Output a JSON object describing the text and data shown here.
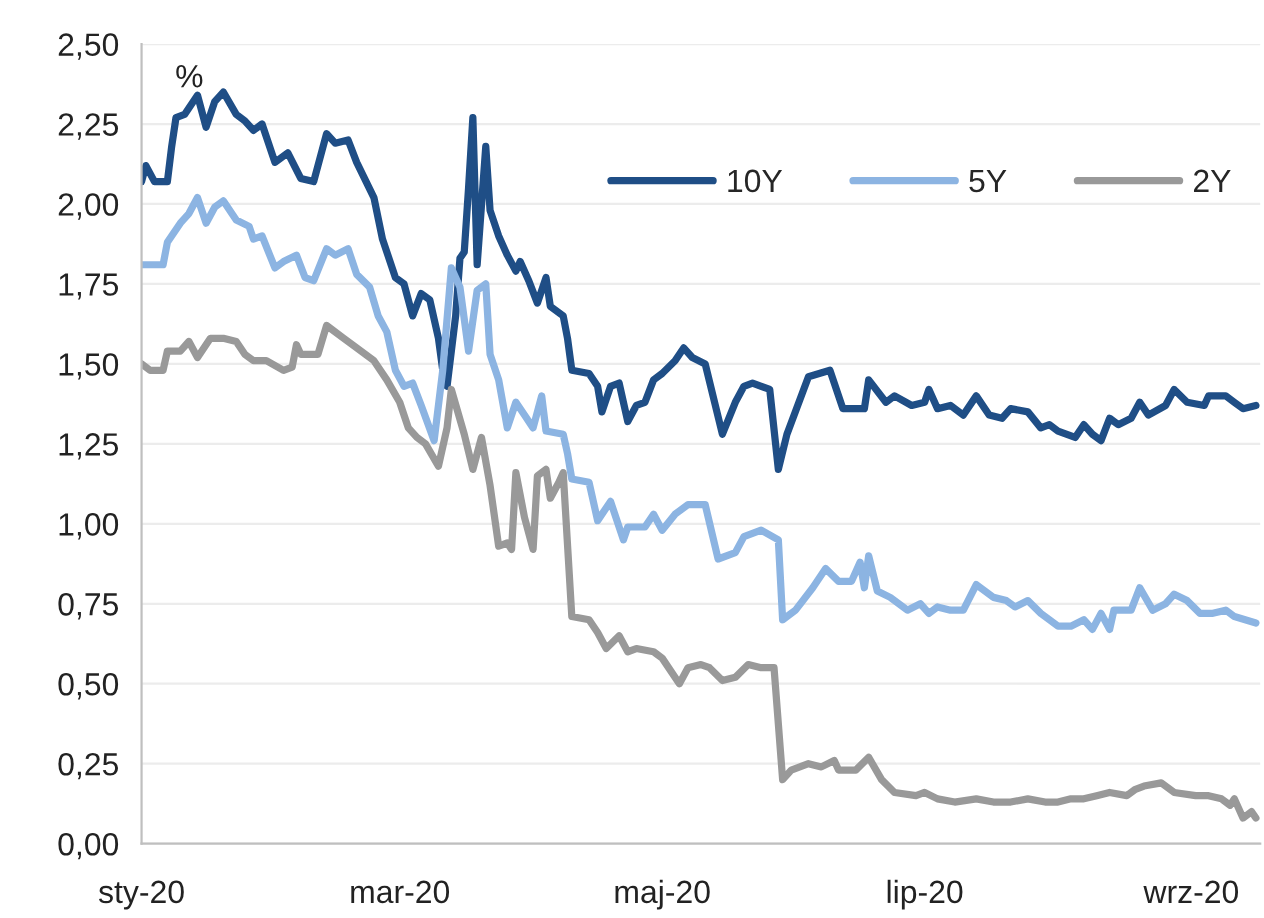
{
  "chart_data": {
    "type": "line",
    "ylabel": "%",
    "xlim": [
      "2020-01-01",
      "2020-09-17"
    ],
    "xticks": [
      {
        "value": "2020-01-01",
        "label": "sty-20"
      },
      {
        "value": "2020-03-01",
        "label": "mar-20"
      },
      {
        "value": "2020-05-01",
        "label": "maj-20"
      },
      {
        "value": "2020-07-01",
        "label": "lip-20"
      },
      {
        "value": "2020-09-01",
        "label": "wrz-20"
      }
    ],
    "ylim": [
      0,
      2.5
    ],
    "yticks": [
      {
        "value": 0,
        "label": "0,00"
      },
      {
        "value": 0.25,
        "label": "0,25"
      },
      {
        "value": 0.5,
        "label": "0,50"
      },
      {
        "value": 0.75,
        "label": "0,75"
      },
      {
        "value": 1,
        "label": "1,00"
      },
      {
        "value": 1.25,
        "label": "1,25"
      },
      {
        "value": 1.5,
        "label": "1,50"
      },
      {
        "value": 1.75,
        "label": "1,75"
      },
      {
        "value": 2,
        "label": "2,00"
      },
      {
        "value": 2.25,
        "label": "2,25"
      },
      {
        "value": 2.5,
        "label": "2,50"
      }
    ],
    "grid": "y",
    "legend": "top right",
    "marker": "none",
    "line_style": "solid",
    "series": [
      {
        "name": "10Y",
        "color": "#1f4e86",
        "x": [
          "2020-01-01",
          "2020-01-02",
          "2020-01-04",
          "2020-01-07",
          "2020-01-08",
          "2020-01-09",
          "2020-01-11",
          "2020-01-14",
          "2020-01-16",
          "2020-01-18",
          "2020-01-20",
          "2020-01-23",
          "2020-01-25",
          "2020-01-27",
          "2020-01-29",
          "2020-02-01",
          "2020-02-04",
          "2020-02-07",
          "2020-02-10",
          "2020-02-13",
          "2020-02-15",
          "2020-02-18",
          "2020-02-20",
          "2020-02-24",
          "2020-02-26",
          "2020-02-29",
          "2020-03-02",
          "2020-03-04",
          "2020-03-06",
          "2020-03-08",
          "2020-03-10",
          "2020-03-11",
          "2020-03-12",
          "2020-03-14",
          "2020-03-15",
          "2020-03-16",
          "2020-03-17",
          "2020-03-18",
          "2020-03-19",
          "2020-03-21",
          "2020-03-22",
          "2020-03-24",
          "2020-03-26",
          "2020-03-28",
          "2020-03-29",
          "2020-03-31",
          "2020-04-02",
          "2020-04-04",
          "2020-04-05",
          "2020-04-08",
          "2020-04-09",
          "2020-04-10",
          "2020-04-14",
          "2020-04-16",
          "2020-04-17",
          "2020-04-19",
          "2020-04-21",
          "2020-04-23",
          "2020-04-25",
          "2020-04-27",
          "2020-04-29",
          "2020-05-01",
          "2020-05-04",
          "2020-05-06",
          "2020-05-08",
          "2020-05-11",
          "2020-05-15",
          "2020-05-18",
          "2020-05-20",
          "2020-05-22",
          "2020-05-26",
          "2020-05-28",
          "2020-05-30",
          "2020-06-04",
          "2020-06-09",
          "2020-06-12",
          "2020-06-17",
          "2020-06-18",
          "2020-06-22",
          "2020-06-24",
          "2020-06-28",
          "2020-07-01",
          "2020-07-02",
          "2020-07-04",
          "2020-07-07",
          "2020-07-10",
          "2020-07-13",
          "2020-07-16",
          "2020-07-19",
          "2020-07-21",
          "2020-07-25",
          "2020-07-28",
          "2020-07-30",
          "2020-08-01",
          "2020-08-05",
          "2020-08-07",
          "2020-08-09",
          "2020-08-11",
          "2020-08-13",
          "2020-08-15",
          "2020-08-18",
          "2020-08-20",
          "2020-08-22",
          "2020-08-26",
          "2020-08-28",
          "2020-08-31",
          "2020-09-04",
          "2020-09-05",
          "2020-09-09",
          "2020-09-11",
          "2020-09-13",
          "2020-09-16"
        ],
        "values": [
          2.07,
          2.12,
          2.07,
          2.07,
          2.18,
          2.27,
          2.28,
          2.34,
          2.24,
          2.32,
          2.35,
          2.28,
          2.26,
          2.23,
          2.25,
          2.13,
          2.16,
          2.08,
          2.07,
          2.22,
          2.19,
          2.2,
          2.13,
          2.02,
          1.89,
          1.77,
          1.75,
          1.65,
          1.72,
          1.7,
          1.58,
          1.48,
          1.43,
          1.65,
          1.83,
          1.85,
          2.05,
          2.27,
          1.81,
          2.18,
          1.98,
          1.9,
          1.84,
          1.79,
          1.82,
          1.76,
          1.69,
          1.77,
          1.68,
          1.65,
          1.58,
          1.48,
          1.47,
          1.43,
          1.35,
          1.43,
          1.44,
          1.32,
          1.37,
          1.38,
          1.45,
          1.47,
          1.51,
          1.55,
          1.52,
          1.5,
          1.28,
          1.38,
          1.43,
          1.44,
          1.42,
          1.17,
          1.28,
          1.46,
          1.48,
          1.36,
          1.36,
          1.45,
          1.38,
          1.4,
          1.37,
          1.38,
          1.42,
          1.36,
          1.37,
          1.34,
          1.4,
          1.34,
          1.33,
          1.36,
          1.35,
          1.3,
          1.31,
          1.29,
          1.27,
          1.31,
          1.28,
          1.26,
          1.33,
          1.31,
          1.33,
          1.38,
          1.34,
          1.37,
          1.42,
          1.38,
          1.37,
          1.4,
          1.4,
          1.38,
          1.36,
          1.37
        ]
      },
      {
        "name": "5Y",
        "color": "#8cb4e2",
        "x": [
          "2020-01-01",
          "2020-01-03",
          "2020-01-06",
          "2020-01-07",
          "2020-01-10",
          "2020-01-12",
          "2020-01-14",
          "2020-01-16",
          "2020-01-18",
          "2020-01-20",
          "2020-01-23",
          "2020-01-26",
          "2020-01-27",
          "2020-01-29",
          "2020-02-01",
          "2020-02-03",
          "2020-02-06",
          "2020-02-08",
          "2020-02-10",
          "2020-02-13",
          "2020-02-15",
          "2020-02-18",
          "2020-02-20",
          "2020-02-23",
          "2020-02-25",
          "2020-02-27",
          "2020-02-29",
          "2020-03-02",
          "2020-03-04",
          "2020-03-06",
          "2020-03-09",
          "2020-03-11",
          "2020-03-13",
          "2020-03-15",
          "2020-03-17",
          "2020-03-19",
          "2020-03-21",
          "2020-03-22",
          "2020-03-24",
          "2020-03-26",
          "2020-03-28",
          "2020-03-30",
          "2020-04-01",
          "2020-04-03",
          "2020-04-04",
          "2020-04-08",
          "2020-04-09",
          "2020-04-10",
          "2020-04-14",
          "2020-04-16",
          "2020-04-19",
          "2020-04-22",
          "2020-04-23",
          "2020-04-27",
          "2020-04-29",
          "2020-05-01",
          "2020-05-04",
          "2020-05-07",
          "2020-05-11",
          "2020-05-14",
          "2020-05-18",
          "2020-05-20",
          "2020-05-24",
          "2020-05-28",
          "2020-05-29",
          "2020-06-01",
          "2020-06-05",
          "2020-06-08",
          "2020-06-11",
          "2020-06-14",
          "2020-06-16",
          "2020-06-17",
          "2020-06-18",
          "2020-06-20",
          "2020-06-23",
          "2020-06-27",
          "2020-06-30",
          "2020-07-02",
          "2020-07-04",
          "2020-07-07",
          "2020-07-10",
          "2020-07-13",
          "2020-07-17",
          "2020-07-20",
          "2020-07-22",
          "2020-07-25",
          "2020-07-28",
          "2020-08-01",
          "2020-08-04",
          "2020-08-07",
          "2020-08-09",
          "2020-08-11",
          "2020-08-13",
          "2020-08-14",
          "2020-08-18",
          "2020-08-20",
          "2020-08-23",
          "2020-08-26",
          "2020-08-28",
          "2020-08-31",
          "2020-09-03",
          "2020-09-06",
          "2020-09-09",
          "2020-09-11",
          "2020-09-16"
        ],
        "values": [
          1.81,
          1.81,
          1.81,
          1.88,
          1.94,
          1.97,
          2.02,
          1.94,
          1.99,
          2.01,
          1.95,
          1.93,
          1.89,
          1.9,
          1.8,
          1.82,
          1.84,
          1.77,
          1.76,
          1.86,
          1.84,
          1.86,
          1.78,
          1.74,
          1.65,
          1.6,
          1.48,
          1.43,
          1.44,
          1.37,
          1.26,
          1.48,
          1.8,
          1.74,
          1.54,
          1.73,
          1.75,
          1.53,
          1.45,
          1.3,
          1.38,
          1.34,
          1.3,
          1.4,
          1.29,
          1.28,
          1.22,
          1.14,
          1.13,
          1.01,
          1.07,
          0.95,
          0.99,
          0.99,
          1.03,
          0.98,
          1.03,
          1.06,
          1.06,
          0.89,
          0.91,
          0.96,
          0.98,
          0.95,
          0.7,
          0.73,
          0.8,
          0.86,
          0.82,
          0.82,
          0.88,
          0.8,
          0.9,
          0.79,
          0.77,
          0.73,
          0.75,
          0.72,
          0.74,
          0.73,
          0.73,
          0.81,
          0.77,
          0.76,
          0.74,
          0.76,
          0.72,
          0.68,
          0.68,
          0.7,
          0.67,
          0.72,
          0.67,
          0.73,
          0.73,
          0.8,
          0.73,
          0.75,
          0.78,
          0.76,
          0.72,
          0.72,
          0.73,
          0.71,
          0.69
        ]
      },
      {
        "name": "2Y",
        "color": "#999999",
        "x": [
          "2020-01-01",
          "2020-01-03",
          "2020-01-06",
          "2020-01-07",
          "2020-01-10",
          "2020-01-12",
          "2020-01-14",
          "2020-01-17",
          "2020-01-20",
          "2020-01-23",
          "2020-01-25",
          "2020-01-27",
          "2020-01-30",
          "2020-02-03",
          "2020-02-05",
          "2020-02-06",
          "2020-02-07",
          "2020-02-11",
          "2020-02-13",
          "2020-02-17",
          "2020-02-20",
          "2020-02-24",
          "2020-02-27",
          "2020-03-01",
          "2020-03-03",
          "2020-03-05",
          "2020-03-07",
          "2020-03-10",
          "2020-03-12",
          "2020-03-13",
          "2020-03-16",
          "2020-03-18",
          "2020-03-20",
          "2020-03-22",
          "2020-03-24",
          "2020-03-26",
          "2020-03-27",
          "2020-03-28",
          "2020-03-30",
          "2020-04-01",
          "2020-04-02",
          "2020-04-04",
          "2020-04-05",
          "2020-04-07",
          "2020-04-08",
          "2020-04-10",
          "2020-04-14",
          "2020-04-16",
          "2020-04-18",
          "2020-04-21",
          "2020-04-23",
          "2020-04-25",
          "2020-04-29",
          "2020-05-01",
          "2020-05-05",
          "2020-05-07",
          "2020-05-10",
          "2020-05-12",
          "2020-05-15",
          "2020-05-18",
          "2020-05-21",
          "2020-05-24",
          "2020-05-27",
          "2020-05-29",
          "2020-05-31",
          "2020-06-04",
          "2020-06-07",
          "2020-06-10",
          "2020-06-11",
          "2020-06-15",
          "2020-06-18",
          "2020-06-21",
          "2020-06-24",
          "2020-06-29",
          "2020-07-01",
          "2020-07-04",
          "2020-07-08",
          "2020-07-13",
          "2020-07-17",
          "2020-07-21",
          "2020-07-25",
          "2020-07-29",
          "2020-08-01",
          "2020-08-04",
          "2020-08-07",
          "2020-08-10",
          "2020-08-13",
          "2020-08-17",
          "2020-08-19",
          "2020-08-21",
          "2020-08-25",
          "2020-08-28",
          "2020-09-02",
          "2020-09-05",
          "2020-09-08",
          "2020-09-10",
          "2020-09-11",
          "2020-09-13",
          "2020-09-15",
          "2020-09-16"
        ],
        "values": [
          1.5,
          1.48,
          1.48,
          1.54,
          1.54,
          1.57,
          1.52,
          1.58,
          1.58,
          1.57,
          1.53,
          1.51,
          1.51,
          1.48,
          1.49,
          1.56,
          1.53,
          1.53,
          1.62,
          1.58,
          1.55,
          1.51,
          1.45,
          1.38,
          1.3,
          1.27,
          1.25,
          1.18,
          1.3,
          1.42,
          1.28,
          1.17,
          1.27,
          1.12,
          0.93,
          0.94,
          0.92,
          1.16,
          1.02,
          0.92,
          1.15,
          1.17,
          1.08,
          1.13,
          1.16,
          0.71,
          0.7,
          0.66,
          0.61,
          0.65,
          0.6,
          0.61,
          0.6,
          0.58,
          0.5,
          0.55,
          0.56,
          0.55,
          0.51,
          0.52,
          0.56,
          0.55,
          0.55,
          0.2,
          0.23,
          0.25,
          0.24,
          0.26,
          0.23,
          0.23,
          0.27,
          0.2,
          0.16,
          0.15,
          0.16,
          0.14,
          0.13,
          0.14,
          0.13,
          0.13,
          0.14,
          0.13,
          0.13,
          0.14,
          0.14,
          0.15,
          0.16,
          0.15,
          0.17,
          0.18,
          0.19,
          0.16,
          0.15,
          0.15,
          0.14,
          0.12,
          0.14,
          0.08,
          0.1,
          0.08
        ]
      }
    ]
  }
}
